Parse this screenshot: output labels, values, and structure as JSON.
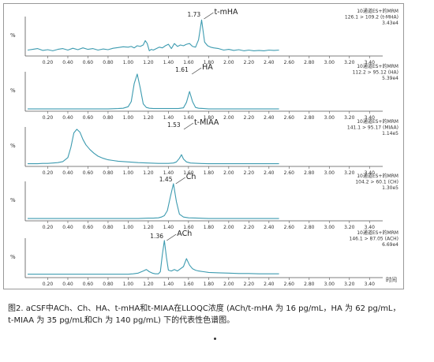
{
  "figure": {
    "caption_line1": "图2. aCSF中ACh、Ch、HA、t-mHA和t-MIAA在LLOQC浓度 (ACh/t-mHA 为 16 pg/mL，HA 为 62 pg/mL，",
    "caption_line2": "t-MIAA 为 35 pg/mL和Ch 为 140 pg/mL) 下的代表性色谱图。",
    "x_axis_unit": "时间",
    "y_axis_label": "%",
    "line_color": "#3d9bb0"
  },
  "chart_data": [
    {
      "type": "line",
      "analyte": "t-mHA",
      "peak_rt_label": "1.73",
      "peak_rt": 1.73,
      "info": [
        "10通道ES+的MRM",
        "126.1 > 109.2 (t-MHA)",
        "3.43e4"
      ],
      "xlim": [
        0.0,
        3.5
      ],
      "xticks": [
        "0.20",
        "0.40",
        "0.60",
        "0.80",
        "1.00",
        "1.20",
        "1.40",
        "1.60",
        "1.80",
        "2.00",
        "2.20",
        "2.40",
        "2.60",
        "2.80",
        "3.00",
        "3.20",
        "3.40"
      ],
      "x": [
        0.0,
        0.05,
        0.1,
        0.15,
        0.2,
        0.25,
        0.3,
        0.35,
        0.4,
        0.45,
        0.5,
        0.55,
        0.6,
        0.65,
        0.7,
        0.75,
        0.8,
        0.85,
        0.9,
        0.95,
        1.0,
        1.03,
        1.06,
        1.09,
        1.12,
        1.15,
        1.17,
        1.19,
        1.21,
        1.23,
        1.25,
        1.28,
        1.31,
        1.34,
        1.37,
        1.4,
        1.43,
        1.46,
        1.49,
        1.52,
        1.55,
        1.58,
        1.61,
        1.64,
        1.67,
        1.7,
        1.73,
        1.76,
        1.79,
        1.82,
        1.85,
        1.9,
        1.95,
        2.0,
        2.05,
        2.1,
        2.15,
        2.2,
        2.25,
        2.3,
        2.35,
        2.4,
        2.45,
        2.5
      ],
      "y": [
        12,
        14,
        16,
        11,
        13,
        10,
        14,
        16,
        12,
        17,
        13,
        18,
        14,
        16,
        12,
        15,
        13,
        17,
        19,
        21,
        20,
        22,
        18,
        24,
        22,
        26,
        38,
        30,
        10,
        14,
        12,
        16,
        20,
        18,
        24,
        28,
        16,
        30,
        22,
        26,
        24,
        28,
        30,
        22,
        20,
        40,
        95,
        34,
        24,
        20,
        18,
        16,
        12,
        14,
        11,
        13,
        10,
        12,
        10,
        11,
        10,
        12,
        11,
        12
      ]
    },
    {
      "type": "line",
      "analyte": "HA",
      "peak_rt_label": "1.61",
      "peak_rt": 1.61,
      "info": [
        "10通道ES+的MRM",
        "112.2 > 95.12 (HA)",
        "5.39e4"
      ],
      "xlim": [
        0.0,
        3.5
      ],
      "xticks": [
        "0.20",
        "0.40",
        "0.60",
        "0.80",
        "1.00",
        "1.20",
        "1.40",
        "1.60",
        "1.80",
        "2.00",
        "2.20",
        "2.40",
        "2.60",
        "2.80",
        "3.00",
        "3.20",
        "3.40"
      ],
      "x": [
        0.0,
        0.1,
        0.2,
        0.3,
        0.4,
        0.5,
        0.6,
        0.7,
        0.8,
        0.9,
        0.95,
        1.0,
        1.03,
        1.06,
        1.09,
        1.12,
        1.15,
        1.18,
        1.21,
        1.25,
        1.3,
        1.35,
        1.4,
        1.45,
        1.5,
        1.55,
        1.58,
        1.61,
        1.64,
        1.67,
        1.7,
        1.75,
        1.8,
        1.9,
        2.0,
        2.1,
        2.2,
        2.3,
        2.4,
        2.5
      ],
      "y": [
        2,
        2,
        2,
        2,
        2,
        2,
        2,
        2,
        2,
        3,
        4,
        8,
        22,
        72,
        98,
        60,
        16,
        6,
        4,
        3,
        3,
        3,
        3,
        3,
        3,
        5,
        20,
        50,
        22,
        6,
        4,
        3,
        2,
        2,
        2,
        2,
        2,
        2,
        2,
        2
      ]
    },
    {
      "type": "line",
      "analyte": "t-MIAA",
      "peak_rt_label": "1.53",
      "peak_rt": 1.53,
      "info": [
        "10通道ES+的MRM",
        "141.1 > 95.17 (MIAA)",
        "1.14e5"
      ],
      "xlim": [
        0.0,
        3.5
      ],
      "xticks": [
        "0.20",
        "0.40",
        "0.60",
        "0.80",
        "1.00",
        "1.20",
        "1.40",
        "1.60",
        "1.80",
        "2.00",
        "2.20",
        "2.40",
        "2.60",
        "2.80",
        "3.00",
        "3.20",
        "3.40"
      ],
      "x": [
        0.0,
        0.05,
        0.1,
        0.15,
        0.2,
        0.25,
        0.3,
        0.35,
        0.4,
        0.43,
        0.46,
        0.49,
        0.52,
        0.55,
        0.58,
        0.62,
        0.66,
        0.7,
        0.75,
        0.8,
        0.85,
        0.9,
        1.0,
        1.1,
        1.2,
        1.3,
        1.4,
        1.45,
        1.48,
        1.51,
        1.53,
        1.55,
        1.58,
        1.62,
        1.7,
        1.8,
        1.9,
        2.0,
        2.1,
        2.2,
        2.3,
        2.4,
        2.5
      ],
      "y": [
        3,
        3,
        3,
        4,
        4,
        5,
        6,
        9,
        20,
        48,
        88,
        98,
        90,
        70,
        55,
        42,
        32,
        24,
        18,
        14,
        12,
        10,
        8,
        6,
        5,
        4,
        4,
        5,
        8,
        18,
        28,
        16,
        8,
        5,
        4,
        3,
        3,
        3,
        3,
        3,
        3,
        3,
        3
      ]
    },
    {
      "type": "line",
      "analyte": "Ch",
      "peak_rt_label": "1.45",
      "peak_rt": 1.45,
      "info": [
        "10通道ES+的MRM",
        "104.2 > 60.1 (CH)",
        "1.30e5"
      ],
      "xlim": [
        0.0,
        3.5
      ],
      "xticks": [
        "0.20",
        "0.40",
        "0.60",
        "0.80",
        "1.00",
        "1.20",
        "1.40",
        "1.60",
        "1.80",
        "2.00",
        "2.20",
        "2.40",
        "2.60",
        "2.80",
        "3.00",
        "3.20",
        "3.40"
      ],
      "x": [
        0.0,
        0.2,
        0.4,
        0.6,
        0.8,
        1.0,
        1.1,
        1.2,
        1.25,
        1.3,
        1.33,
        1.36,
        1.39,
        1.42,
        1.45,
        1.48,
        1.51,
        1.55,
        1.6,
        1.7,
        1.8,
        2.0,
        2.2,
        2.4,
        2.5
      ],
      "y": [
        2,
        2,
        2,
        2,
        2,
        2,
        2,
        3,
        3,
        4,
        6,
        10,
        24,
        62,
        98,
        48,
        14,
        6,
        4,
        3,
        2,
        2,
        2,
        2,
        2
      ]
    },
    {
      "type": "line",
      "analyte": "ACh",
      "peak_rt_label": "1.36",
      "peak_rt": 1.36,
      "info": [
        "10通道ES+的MRM",
        "146.1 > 87.05 (ACH)",
        "6.69e4"
      ],
      "xlim": [
        0.0,
        3.5
      ],
      "xticks": [
        "0.20",
        "0.40",
        "0.60",
        "0.80",
        "1.00",
        "1.20",
        "1.40",
        "1.60",
        "1.80",
        "2.00",
        "2.20",
        "2.40",
        "2.60",
        "2.80",
        "3.00",
        "3.20",
        "3.40"
      ],
      "x": [
        0.0,
        0.1,
        0.2,
        0.3,
        0.4,
        0.5,
        0.6,
        0.7,
        0.8,
        0.9,
        1.0,
        1.05,
        1.1,
        1.15,
        1.18,
        1.21,
        1.24,
        1.27,
        1.3,
        1.32,
        1.34,
        1.36,
        1.38,
        1.4,
        1.43,
        1.46,
        1.49,
        1.52,
        1.55,
        1.58,
        1.61,
        1.64,
        1.67,
        1.7,
        1.75,
        1.8,
        1.9,
        2.0,
        2.1,
        2.2,
        2.3,
        2.4,
        2.5
      ],
      "y": [
        5,
        5,
        5,
        5,
        5,
        5,
        5,
        5,
        5,
        5,
        5,
        6,
        8,
        14,
        18,
        12,
        8,
        6,
        6,
        12,
        60,
        98,
        52,
        16,
        14,
        18,
        14,
        20,
        26,
        48,
        30,
        20,
        16,
        14,
        12,
        10,
        9,
        8,
        7,
        7,
        6,
        6,
        6
      ]
    }
  ]
}
